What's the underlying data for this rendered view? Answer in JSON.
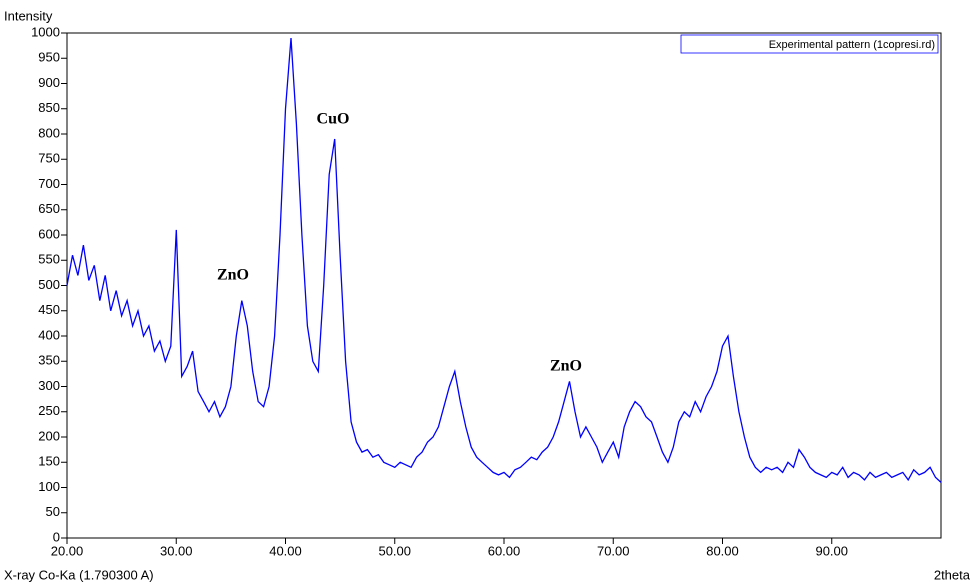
{
  "chart_data": {
    "type": "line",
    "y_label": "Intensity",
    "x_label": "2theta",
    "footer": "X-ray Co-Ka (1.790300 A)",
    "annotations": [
      "ZnO",
      "CuO",
      "ZnO"
    ],
    "xlim": [
      20,
      100
    ],
    "ylim": [
      0,
      1000
    ],
    "xticks": [
      {
        "value": 20,
        "label": "20.00"
      },
      {
        "value": 30,
        "label": "30.00"
      },
      {
        "value": 40,
        "label": "40.00"
      },
      {
        "value": 50,
        "label": "50.00"
      },
      {
        "value": 60,
        "label": "60.00"
      },
      {
        "value": 70,
        "label": "70.00"
      },
      {
        "value": 80,
        "label": "80.00"
      },
      {
        "value": 90,
        "label": "90.00"
      }
    ],
    "yticks": [
      0,
      50,
      100,
      150,
      200,
      250,
      300,
      350,
      400,
      450,
      500,
      550,
      600,
      650,
      700,
      750,
      800,
      850,
      900,
      950,
      1000
    ],
    "legend": "top-right",
    "x": [
      20,
      20.5,
      21,
      21.5,
      22,
      22.5,
      23,
      23.5,
      24,
      24.5,
      25,
      25.5,
      26,
      26.5,
      27,
      27.5,
      28,
      28.5,
      29,
      29.5,
      30,
      30.5,
      31,
      31.5,
      32,
      32.5,
      33,
      33.5,
      34,
      34.5,
      35,
      35.5,
      36,
      36.5,
      37,
      37.5,
      38,
      38.5,
      39,
      39.5,
      40,
      40.5,
      41,
      41.5,
      42,
      42.5,
      43,
      43.5,
      44,
      44.5,
      45,
      45.5,
      46,
      46.5,
      47,
      47.5,
      48,
      48.5,
      49,
      49.5,
      50,
      50.5,
      51,
      51.5,
      52,
      52.5,
      53,
      53.5,
      54,
      54.5,
      55,
      55.5,
      56,
      56.5,
      57,
      57.5,
      58,
      58.5,
      59,
      59.5,
      60,
      60.5,
      61,
      61.5,
      62,
      62.5,
      63,
      63.5,
      64,
      64.5,
      65,
      65.5,
      66,
      66.5,
      67,
      67.5,
      68,
      68.5,
      69,
      69.5,
      70,
      70.5,
      71,
      71.5,
      72,
      72.5,
      73,
      73.5,
      74,
      74.5,
      75,
      75.5,
      76,
      76.5,
      77,
      77.5,
      78,
      78.5,
      79,
      79.5,
      80,
      80.5,
      81,
      81.5,
      82,
      82.5,
      83,
      83.5,
      84,
      84.5,
      85,
      85.5,
      86,
      86.5,
      87,
      87.5,
      88,
      88.5,
      89,
      89.5,
      90,
      90.5,
      91,
      91.5,
      92,
      92.5,
      93,
      93.5,
      94,
      94.5,
      95,
      95.5,
      96,
      96.5,
      97,
      97.5,
      98,
      98.5,
      99,
      99.5,
      100
    ],
    "series": [
      {
        "name": "Experimental pattern (1copresi.rd)",
        "color": "#0000ff",
        "values": [
          500,
          560,
          520,
          580,
          510,
          540,
          470,
          520,
          450,
          490,
          440,
          470,
          420,
          450,
          400,
          420,
          370,
          390,
          350,
          380,
          610,
          320,
          340,
          370,
          290,
          270,
          250,
          270,
          240,
          260,
          300,
          400,
          470,
          420,
          330,
          270,
          260,
          300,
          400,
          600,
          850,
          990,
          820,
          600,
          420,
          350,
          330,
          500,
          720,
          790,
          560,
          350,
          230,
          190,
          170,
          175,
          160,
          165,
          150,
          145,
          140,
          150,
          145,
          140,
          160,
          170,
          190,
          200,
          220,
          260,
          300,
          330,
          270,
          220,
          180,
          160,
          150,
          140,
          130,
          125,
          130,
          120,
          135,
          140,
          150,
          160,
          155,
          170,
          180,
          200,
          230,
          270,
          310,
          250,
          200,
          220,
          200,
          180,
          150,
          170,
          190,
          160,
          220,
          250,
          270,
          260,
          240,
          230,
          200,
          170,
          150,
          180,
          230,
          250,
          240,
          270,
          250,
          280,
          300,
          330,
          380,
          400,
          320,
          250,
          200,
          160,
          140,
          130,
          140,
          135,
          140,
          130,
          150,
          140,
          175,
          160,
          140,
          130,
          125,
          120,
          130,
          125,
          140,
          120,
          130,
          125,
          115,
          130,
          120,
          125,
          130,
          120,
          125,
          130,
          115,
          135,
          125,
          130,
          140,
          120,
          110
        ]
      }
    ]
  }
}
